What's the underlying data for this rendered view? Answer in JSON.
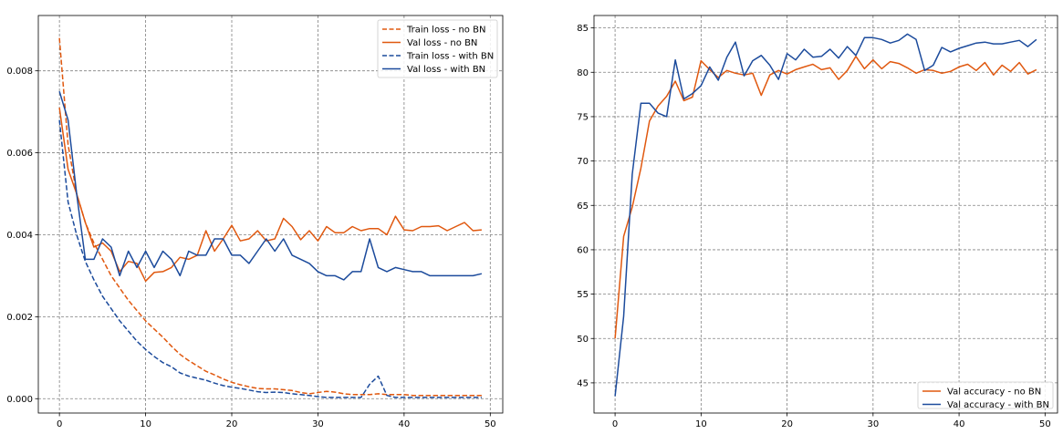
{
  "colors": {
    "orange": "#e0580f",
    "blue": "#1c4b9c",
    "grid": "#808080",
    "axis": "#000000"
  },
  "chart_data": [
    {
      "type": "line",
      "x": [
        0,
        1,
        2,
        3,
        4,
        5,
        6,
        7,
        8,
        9,
        10,
        11,
        12,
        13,
        14,
        15,
        16,
        17,
        18,
        19,
        20,
        21,
        22,
        23,
        24,
        25,
        26,
        27,
        28,
        29,
        30,
        31,
        32,
        33,
        34,
        35,
        36,
        37,
        38,
        39,
        40,
        41,
        42,
        43,
        44,
        45,
        46,
        47,
        48,
        49
      ],
      "xlim": [
        -2.45,
        51.45
      ],
      "ylim": [
        -0.00035,
        0.00935
      ],
      "xticks": [
        0,
        10,
        20,
        30,
        40,
        50
      ],
      "xtick_labels": [
        "0",
        "10",
        "20",
        "30",
        "40",
        "50"
      ],
      "yticks": [
        0.0,
        0.002,
        0.004,
        0.006,
        0.008
      ],
      "ytick_labels": [
        "0.000",
        "0.002",
        "0.004",
        "0.006",
        "0.008"
      ],
      "grid": true,
      "legend_position": "top-right",
      "series": [
        {
          "name": "Train loss - no BN",
          "color": "#e0580f",
          "dash": "dashed",
          "values": [
            0.0088,
            0.0062,
            0.005,
            0.0043,
            0.0038,
            0.0034,
            0.003,
            0.0027,
            0.0024,
            0.00215,
            0.0019,
            0.0017,
            0.0015,
            0.00128,
            0.00108,
            0.00093,
            0.0008,
            0.00067,
            0.00058,
            0.00048,
            0.0004,
            0.00034,
            0.00029,
            0.00025,
            0.00024,
            0.00024,
            0.00022,
            0.0002,
            0.00015,
            0.00012,
            0.00015,
            0.00018,
            0.00016,
            0.00012,
            0.0001,
            0.0001,
            0.0001,
            0.00012,
            0.0001,
            0.0001,
            0.0001,
            8e-05,
            8e-05,
            8e-05,
            8e-05,
            8e-05,
            8e-05,
            8e-05,
            8e-05,
            8e-05
          ]
        },
        {
          "name": "Val loss - no BN",
          "color": "#e0580f",
          "dash": "solid",
          "values": [
            0.0071,
            0.0056,
            0.005,
            0.0043,
            0.0037,
            0.0038,
            0.0036,
            0.0031,
            0.00335,
            0.0033,
            0.00287,
            0.00308,
            0.0031,
            0.0032,
            0.00345,
            0.0034,
            0.0035,
            0.0041,
            0.0036,
            0.0039,
            0.00423,
            0.00385,
            0.0039,
            0.0041,
            0.00385,
            0.0039,
            0.0044,
            0.0042,
            0.00388,
            0.0041,
            0.00385,
            0.0042,
            0.00405,
            0.00405,
            0.0042,
            0.0041,
            0.00415,
            0.00415,
            0.004,
            0.00445,
            0.00412,
            0.0041,
            0.0042,
            0.0042,
            0.00422,
            0.0041,
            0.0042,
            0.0043,
            0.0041,
            0.00412
          ]
        },
        {
          "name": "Train loss - with BN",
          "color": "#1c4b9c",
          "dash": "dashed",
          "values": [
            0.0068,
            0.0048,
            0.004,
            0.00335,
            0.0029,
            0.0025,
            0.0022,
            0.0019,
            0.00165,
            0.0014,
            0.0012,
            0.00103,
            0.00088,
            0.00078,
            0.00063,
            0.00055,
            0.0005,
            0.00045,
            0.00038,
            0.00032,
            0.00028,
            0.00025,
            0.00021,
            0.00017,
            0.00015,
            0.00016,
            0.00015,
            0.00012,
            0.0001,
            8e-05,
            5e-05,
            3e-05,
            3e-05,
            3e-05,
            3e-05,
            3e-05,
            0.00035,
            0.00055,
            8e-05,
            3e-05,
            3e-05,
            3e-05,
            3e-05,
            3e-05,
            3e-05,
            3e-05,
            3e-05,
            3e-05,
            3e-05,
            3e-05
          ]
        },
        {
          "name": "Val loss - with BN",
          "color": "#1c4b9c",
          "dash": "solid",
          "values": [
            0.0075,
            0.0068,
            0.005,
            0.0034,
            0.0034,
            0.0039,
            0.0037,
            0.003,
            0.0036,
            0.0032,
            0.0036,
            0.0032,
            0.0036,
            0.0034,
            0.003,
            0.0036,
            0.0035,
            0.0035,
            0.0039,
            0.0039,
            0.0035,
            0.0035,
            0.0033,
            0.0036,
            0.0039,
            0.0036,
            0.0039,
            0.0035,
            0.0034,
            0.0033,
            0.0031,
            0.003,
            0.003,
            0.0029,
            0.0031,
            0.0031,
            0.0039,
            0.0032,
            0.0031,
            0.0032,
            0.00315,
            0.0031,
            0.0031,
            0.003,
            0.003,
            0.003,
            0.003,
            0.003,
            0.003,
            0.00305
          ]
        }
      ]
    },
    {
      "type": "line",
      "x": [
        0,
        1,
        2,
        3,
        4,
        5,
        6,
        7,
        8,
        9,
        10,
        11,
        12,
        13,
        14,
        15,
        16,
        17,
        18,
        19,
        20,
        21,
        22,
        23,
        24,
        25,
        26,
        27,
        28,
        29,
        30,
        31,
        32,
        33,
        34,
        35,
        36,
        37,
        38,
        39,
        40,
        41,
        42,
        43,
        44,
        45,
        46,
        47,
        48,
        49
      ],
      "xlim": [
        -2.45,
        51.45
      ],
      "ylim": [
        41.6,
        86.4
      ],
      "xticks": [
        0,
        10,
        20,
        30,
        40,
        50
      ],
      "xtick_labels": [
        "0",
        "10",
        "20",
        "30",
        "40",
        "50"
      ],
      "yticks": [
        45,
        50,
        55,
        60,
        65,
        70,
        75,
        80,
        85
      ],
      "ytick_labels": [
        "45",
        "50",
        "55",
        "60",
        "65",
        "70",
        "75",
        "80",
        "85"
      ],
      "grid": true,
      "legend_position": "bottom-right",
      "series": [
        {
          "name": "Val accuracy - no BN",
          "color": "#e0580f",
          "dash": "solid",
          "values": [
            50.0,
            61.5,
            64.8,
            69.2,
            74.5,
            76.2,
            77.3,
            79.0,
            76.8,
            77.2,
            81.3,
            80.3,
            79.4,
            80.2,
            79.9,
            79.7,
            79.9,
            77.4,
            79.7,
            80.2,
            79.8,
            80.3,
            80.6,
            80.9,
            80.3,
            80.5,
            79.2,
            80.2,
            81.8,
            80.4,
            81.4,
            80.4,
            81.2,
            81.0,
            80.5,
            79.9,
            80.3,
            80.2,
            79.9,
            80.1,
            80.6,
            80.9,
            80.2,
            81.1,
            79.7,
            80.8,
            80.1,
            81.1,
            79.8,
            80.3
          ]
        },
        {
          "name": "Val accuracy - with BN",
          "color": "#1c4b9c",
          "dash": "solid",
          "values": [
            43.5,
            52.5,
            68.5,
            76.5,
            76.5,
            75.4,
            75.0,
            81.4,
            77.0,
            77.6,
            78.5,
            80.6,
            79.1,
            81.7,
            83.4,
            79.6,
            81.3,
            81.9,
            80.8,
            79.2,
            82.1,
            81.4,
            82.6,
            81.7,
            81.8,
            82.6,
            81.6,
            82.9,
            81.9,
            83.9,
            83.9,
            83.7,
            83.3,
            83.6,
            84.3,
            83.7,
            80.2,
            80.8,
            82.8,
            82.3,
            82.7,
            83.0,
            83.3,
            83.4,
            83.2,
            83.2,
            83.4,
            83.6,
            82.9,
            83.7
          ]
        }
      ]
    }
  ]
}
